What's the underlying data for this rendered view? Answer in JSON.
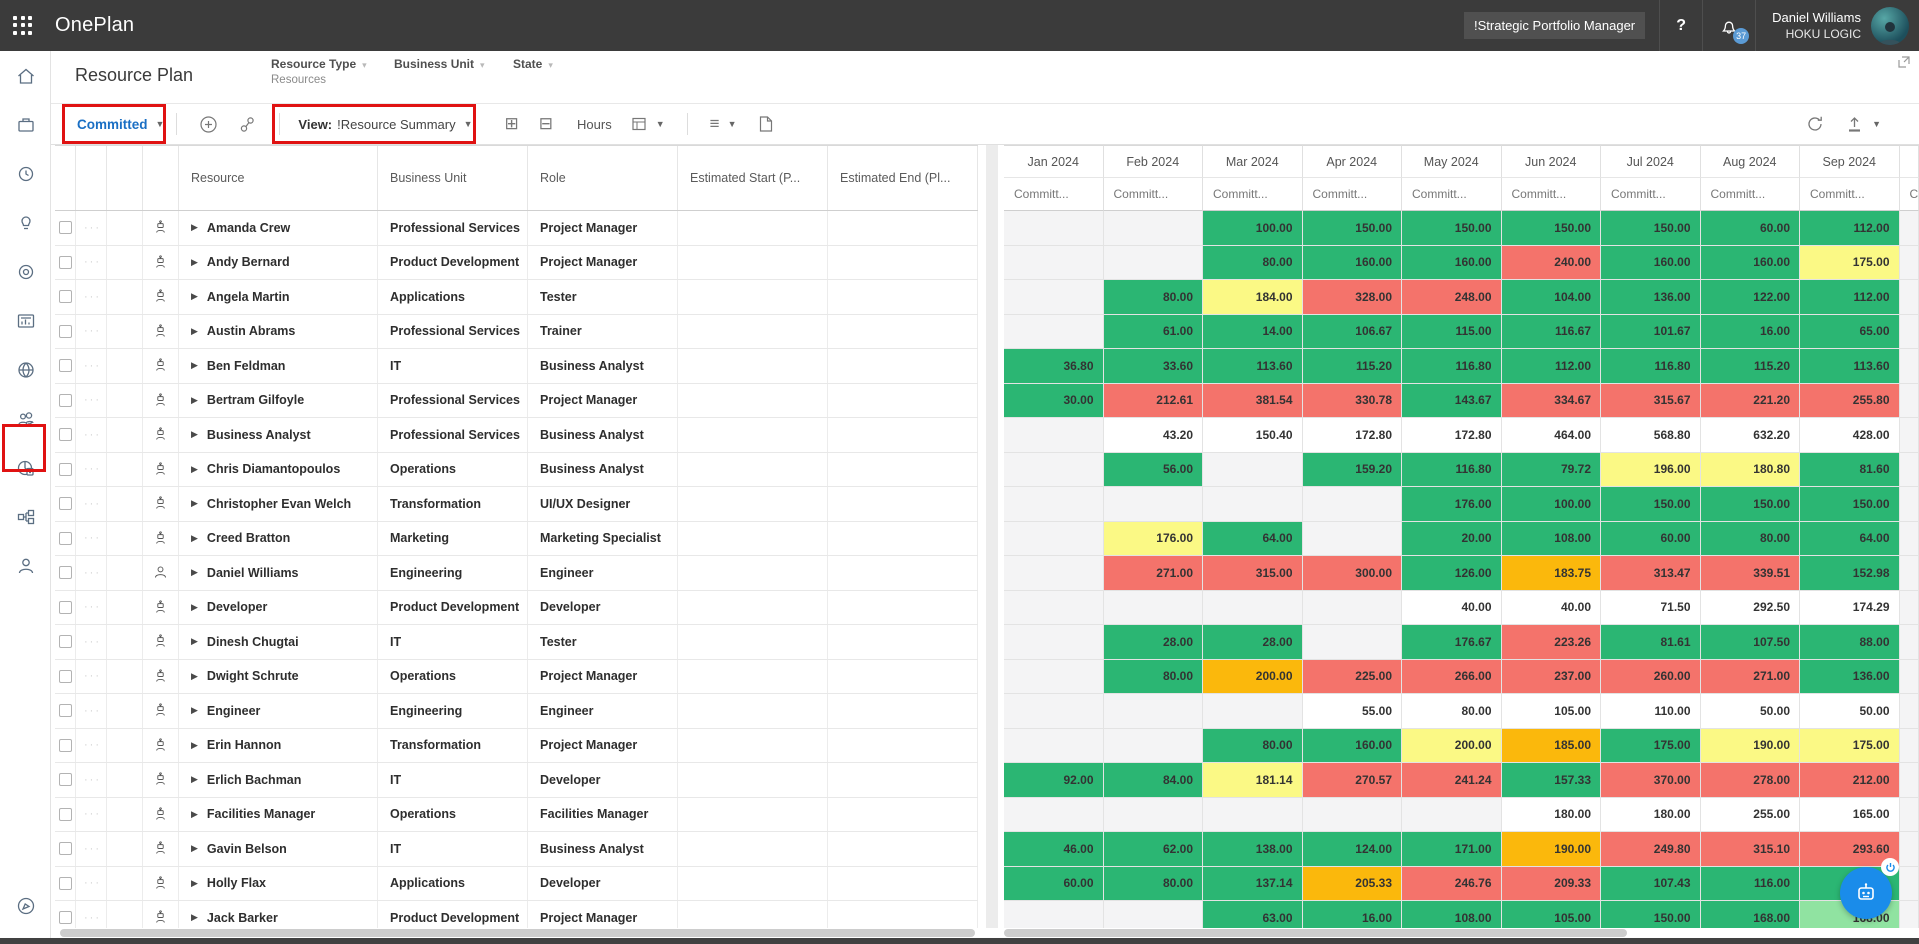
{
  "topbar": {
    "app_title": "OnePlan",
    "portfolio": "!Strategic Portfolio Manager",
    "help_label": "?",
    "notification_count": "37",
    "user_name": "Daniel Williams",
    "user_org": "HOKU LOGIC"
  },
  "header": {
    "title": "Resource Plan",
    "filters": [
      {
        "label": "Resource Type",
        "value": "Resources"
      },
      {
        "label": "Business Unit",
        "value": ""
      },
      {
        "label": "State",
        "value": ""
      }
    ]
  },
  "toolbar": {
    "committed_label": "Committed",
    "view_label": "View:",
    "view_value": "!Resource Summary",
    "hours_label": "Hours"
  },
  "sidebar": {
    "items": [
      {
        "icon": "home-icon"
      },
      {
        "icon": "portfolio-icon"
      },
      {
        "icon": "time-icon"
      },
      {
        "icon": "idea-icon"
      },
      {
        "icon": "target-icon"
      },
      {
        "icon": "chart-icon"
      },
      {
        "icon": "globe-icon"
      },
      {
        "icon": "resources-icon",
        "highlight": true
      },
      {
        "icon": "insights-icon"
      },
      {
        "icon": "hierarchy-icon"
      },
      {
        "icon": "profile-icon"
      }
    ],
    "bottom_icon": "compass-icon"
  },
  "colors": {
    "green": "#2bb673",
    "red": "#f4736b",
    "yellow": "#fbf985",
    "orange": "#fbb80c",
    "light_green": "#90e3a1",
    "empty": "#f4f4f5",
    "accent_blue": "#1a6fc4",
    "topbar": "#3b3b3b",
    "annotation": "#e01212",
    "fab_blue": "#1a8cea"
  },
  "grid": {
    "columns": [
      "Resource",
      "Business Unit",
      "Role",
      "Estimated Start (P...",
      "Estimated End (Pl..."
    ],
    "months": [
      "Jan 2024",
      "Feb 2024",
      "Mar 2024",
      "Apr 2024",
      "May 2024",
      "Jun 2024",
      "Jul 2024",
      "Aug 2024",
      "Sep 2024"
    ],
    "sub_header": "Committ...",
    "rows": [
      {
        "name": "Amanda Crew",
        "bu": "Professional Services",
        "role": "Project Manager",
        "icon": "generic",
        "values": [
          "",
          "",
          "100.00|g",
          "150.00|g",
          "150.00|g",
          "150.00|g",
          "150.00|g",
          "60.00|g",
          "112.00|g"
        ]
      },
      {
        "name": "Andy Bernard",
        "bu": "Product Development",
        "role": "Project Manager",
        "icon": "generic",
        "values": [
          "",
          "",
          "80.00|g",
          "160.00|g",
          "160.00|g",
          "240.00|r",
          "160.00|g",
          "160.00|g",
          "175.00|y"
        ]
      },
      {
        "name": "Angela Martin",
        "bu": "Applications",
        "role": "Tester",
        "icon": "generic",
        "values": [
          "",
          "80.00|g",
          "184.00|y",
          "328.00|r",
          "248.00|r",
          "104.00|g",
          "136.00|g",
          "122.00|g",
          "112.00|g"
        ]
      },
      {
        "name": "Austin Abrams",
        "bu": "Professional Services",
        "role": "Trainer",
        "icon": "generic",
        "values": [
          "",
          "61.00|g",
          "14.00|g",
          "106.67|g",
          "115.00|g",
          "116.67|g",
          "101.67|g",
          "16.00|g",
          "65.00|g"
        ]
      },
      {
        "name": "Ben Feldman",
        "bu": "IT",
        "role": "Business Analyst",
        "icon": "generic",
        "values": [
          "36.80|g",
          "33.60|g",
          "113.60|g",
          "115.20|g",
          "116.80|g",
          "112.00|g",
          "116.80|g",
          "115.20|g",
          "113.60|g"
        ]
      },
      {
        "name": "Bertram Gilfoyle",
        "bu": "Professional Services",
        "role": "Project Manager",
        "icon": "generic",
        "values": [
          "30.00|g",
          "212.61|r",
          "381.54|r",
          "330.78|r",
          "143.67|g",
          "334.67|r",
          "315.67|r",
          "221.20|r",
          "255.80|r"
        ]
      },
      {
        "name": "Business Analyst",
        "bu": "Professional Services",
        "role": "Business Analyst",
        "icon": "generic",
        "values": [
          "",
          "43.20|n",
          "150.40|n",
          "172.80|n",
          "172.80|n",
          "464.00|n",
          "568.80|n",
          "632.20|n",
          "428.00|n"
        ]
      },
      {
        "name": "Chris Diamantopoulos",
        "bu": "Operations",
        "role": "Business Analyst",
        "icon": "generic",
        "values": [
          "",
          "56.00|g",
          "",
          "159.20|g",
          "116.80|g",
          "79.72|g",
          "196.00|y",
          "180.80|y",
          "81.60|g"
        ]
      },
      {
        "name": "Christopher Evan Welch",
        "bu": "Transformation",
        "role": "UI/UX Designer",
        "icon": "generic",
        "values": [
          "",
          "",
          "",
          "",
          "176.00|g",
          "100.00|g",
          "150.00|g",
          "150.00|g",
          "150.00|g"
        ]
      },
      {
        "name": "Creed Bratton",
        "bu": "Marketing",
        "role": "Marketing Specialist",
        "icon": "generic",
        "values": [
          "",
          "176.00|y",
          "64.00|g",
          "",
          "20.00|g",
          "108.00|g",
          "60.00|g",
          "80.00|g",
          "64.00|g"
        ]
      },
      {
        "name": "Daniel Williams",
        "bu": "Engineering",
        "role": "Engineer",
        "icon": "user",
        "values": [
          "",
          "271.00|r",
          "315.00|r",
          "300.00|r",
          "126.00|g",
          "183.75|o",
          "313.47|r",
          "339.51|r",
          "152.98|g"
        ]
      },
      {
        "name": "Developer",
        "bu": "Product Development",
        "role": "Developer",
        "icon": "generic",
        "values": [
          "",
          "",
          "",
          "",
          "40.00|n",
          "40.00|n",
          "71.50|n",
          "292.50|n",
          "174.29|n"
        ]
      },
      {
        "name": "Dinesh Chugtai",
        "bu": "IT",
        "role": "Tester",
        "icon": "generic",
        "values": [
          "",
          "28.00|g",
          "28.00|g",
          "",
          "176.67|g",
          "223.26|r",
          "81.61|g",
          "107.50|g",
          "88.00|g"
        ]
      },
      {
        "name": "Dwight Schrute",
        "bu": "Operations",
        "role": "Project Manager",
        "icon": "generic",
        "values": [
          "",
          "80.00|g",
          "200.00|o",
          "225.00|r",
          "266.00|r",
          "237.00|r",
          "260.00|r",
          "271.00|r",
          "136.00|g"
        ]
      },
      {
        "name": "Engineer",
        "bu": "Engineering",
        "role": "Engineer",
        "icon": "generic",
        "values": [
          "",
          "",
          "",
          "55.00|n",
          "80.00|n",
          "105.00|n",
          "110.00|n",
          "50.00|n",
          "50.00|n"
        ]
      },
      {
        "name": "Erin Hannon",
        "bu": "Transformation",
        "role": "Project Manager",
        "icon": "generic",
        "values": [
          "",
          "",
          "80.00|g",
          "160.00|g",
          "200.00|y",
          "185.00|o",
          "175.00|g",
          "190.00|y",
          "175.00|y"
        ]
      },
      {
        "name": "Erlich Bachman",
        "bu": "IT",
        "role": "Developer",
        "icon": "generic",
        "values": [
          "92.00|g",
          "84.00|g",
          "181.14|y",
          "270.57|r",
          "241.24|r",
          "157.33|g",
          "370.00|r",
          "278.00|r",
          "212.00|r"
        ]
      },
      {
        "name": "Facilities Manager",
        "bu": "Operations",
        "role": "Facilities Manager",
        "icon": "generic",
        "values": [
          "",
          "",
          "",
          "",
          "",
          "180.00|n",
          "180.00|n",
          "255.00|n",
          "165.00|n"
        ]
      },
      {
        "name": "Gavin Belson",
        "bu": "IT",
        "role": "Business Analyst",
        "icon": "generic",
        "values": [
          "46.00|g",
          "62.00|g",
          "138.00|g",
          "124.00|g",
          "171.00|g",
          "190.00|o",
          "249.80|r",
          "315.10|r",
          "293.60|r"
        ]
      },
      {
        "name": "Holly Flax",
        "bu": "Applications",
        "role": "Developer",
        "icon": "generic",
        "values": [
          "60.00|g",
          "80.00|g",
          "137.14|g",
          "205.33|o",
          "246.76|r",
          "209.33|r",
          "107.43|g",
          "116.00|g",
          "|g"
        ]
      },
      {
        "name": "Jack Barker",
        "bu": "Product Development",
        "role": "Project Manager",
        "icon": "generic",
        "values": [
          "",
          "",
          "63.00|g",
          "16.00|g",
          "108.00|g",
          "105.00|g",
          "150.00|g",
          "168.00|g",
          "168.00|lg"
        ]
      }
    ]
  }
}
